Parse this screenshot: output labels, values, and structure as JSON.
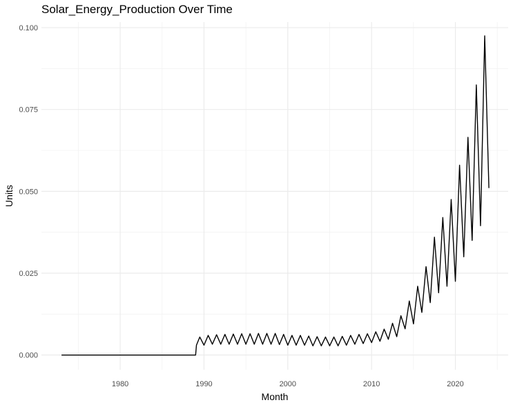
{
  "chart_data": {
    "type": "line",
    "title": "Solar_Energy_Production Over Time",
    "xlabel": "Month",
    "ylabel": "Units",
    "xlim": [
      1970.6,
      2026.3
    ],
    "ylim": [
      -0.0045,
      0.1017
    ],
    "x_ticks": [
      1980,
      1990,
      2000,
      2010,
      2020
    ],
    "x_tick_labels": [
      "1980",
      "1990",
      "2000",
      "2010",
      "2020"
    ],
    "y_ticks": [
      0.0,
      0.025,
      0.05,
      0.075,
      0.1
    ],
    "y_tick_labels": [
      "0.000",
      "0.025",
      "0.050",
      "0.075",
      "0.100"
    ],
    "grid": true,
    "legend": "none",
    "series": [
      {
        "color": "#000000",
        "x": [
          1973.0,
          1989.0,
          1989.1,
          1989.5,
          1990.0,
          1990.5,
          1991.0,
          1991.5,
          1992.0,
          1992.5,
          1993.0,
          1993.5,
          1994.0,
          1994.5,
          1995.0,
          1995.5,
          1996.0,
          1996.5,
          1997.0,
          1997.5,
          1998.0,
          1998.5,
          1999.0,
          1999.5,
          2000.0,
          2000.5,
          2001.0,
          2001.5,
          2002.0,
          2002.5,
          2003.0,
          2003.5,
          2004.0,
          2004.5,
          2005.0,
          2005.5,
          2006.0,
          2006.5,
          2007.0,
          2007.5,
          2008.0,
          2008.5,
          2009.0,
          2009.5,
          2010.0,
          2010.5,
          2011.0,
          2011.5,
          2012.0,
          2012.5,
          2013.0,
          2013.5,
          2014.0,
          2014.5,
          2015.0,
          2015.5,
          2016.0,
          2016.5,
          2017.0,
          2017.5,
          2018.0,
          2018.5,
          2019.0,
          2019.5,
          2020.0,
          2020.5,
          2021.0,
          2021.5,
          2022.0,
          2022.5,
          2023.0,
          2023.5,
          2024.0
        ],
        "y": [
          0.0,
          0.0,
          0.003,
          0.0055,
          0.003,
          0.006,
          0.0033,
          0.0062,
          0.0033,
          0.0063,
          0.0033,
          0.0064,
          0.0033,
          0.0065,
          0.0033,
          0.0065,
          0.0033,
          0.0066,
          0.0033,
          0.0066,
          0.0033,
          0.0066,
          0.0032,
          0.0063,
          0.003,
          0.006,
          0.003,
          0.006,
          0.003,
          0.0058,
          0.0028,
          0.0056,
          0.0028,
          0.0055,
          0.0028,
          0.0055,
          0.0028,
          0.0057,
          0.003,
          0.006,
          0.0033,
          0.0063,
          0.0035,
          0.0065,
          0.0038,
          0.0071,
          0.0042,
          0.0079,
          0.0048,
          0.0097,
          0.0056,
          0.012,
          0.008,
          0.0165,
          0.0095,
          0.021,
          0.013,
          0.027,
          0.016,
          0.036,
          0.019,
          0.042,
          0.021,
          0.0475,
          0.0225,
          0.058,
          0.03,
          0.0665,
          0.035,
          0.0825,
          0.0395,
          0.0975,
          0.051
        ]
      }
    ]
  }
}
